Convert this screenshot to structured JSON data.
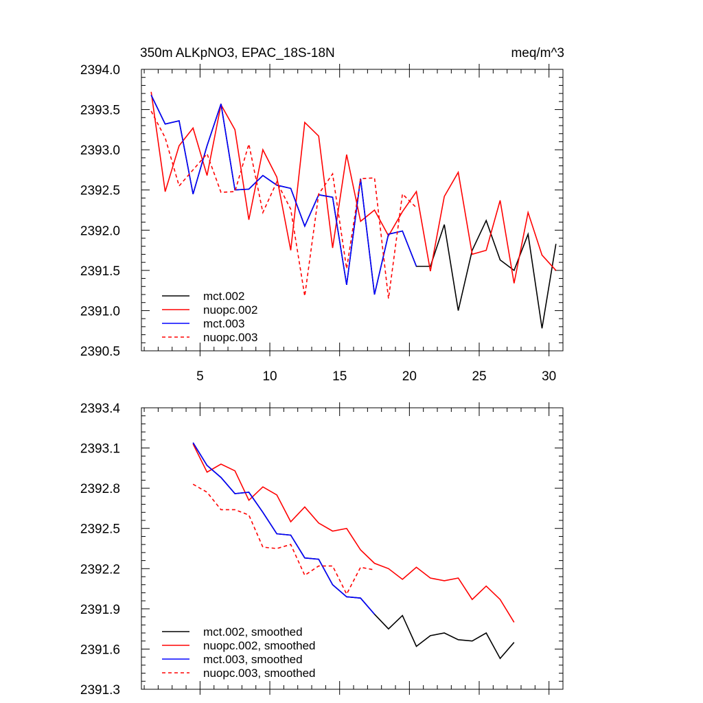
{
  "chart_data": [
    {
      "type": "line",
      "title_left": "350m ALKpNO3, EPAC_18S-18N",
      "title_right": "meq/m^3",
      "xlim": [
        0.8,
        31.0
      ],
      "ylim": [
        2390.5,
        2394.0
      ],
      "xticks": [
        5,
        10,
        15,
        20,
        25,
        30
      ],
      "yticks": [
        2390.5,
        2391.0,
        2391.5,
        2392.0,
        2392.5,
        2393.0,
        2393.5,
        2394.0
      ],
      "ytick_labels": [
        "2390.5",
        "2391.0",
        "2391.5",
        "2392.0",
        "2392.5",
        "2393.0",
        "2393.5",
        "2394.0"
      ],
      "legend_position": "bottom-left",
      "series": [
        {
          "name": "mct.002",
          "color": "#000000",
          "dash": "solid",
          "x": [
            1.5,
            2.5,
            3.5,
            4.5,
            5.5,
            6.5,
            7.5,
            8.5,
            9.5,
            10.5,
            11.5,
            12.5,
            13.5,
            14.5,
            15.5,
            16.5,
            17.5,
            18.5,
            19.5,
            20.5,
            21.5,
            22.5,
            23.5,
            24.5,
            25.5,
            26.5,
            27.5,
            28.5,
            29.5,
            30.5
          ],
          "values": [
            2393.68,
            2393.32,
            2393.36,
            2392.45,
            2393.05,
            2393.57,
            2392.5,
            2392.51,
            2392.68,
            2392.56,
            2392.52,
            2392.05,
            2392.44,
            2392.41,
            2391.32,
            2392.64,
            2391.2,
            2391.95,
            2391.99,
            2391.55,
            2391.55,
            2392.07,
            2391.0,
            2391.75,
            2392.12,
            2391.63,
            2391.5,
            2391.95,
            2390.78,
            2391.83
          ]
        },
        {
          "name": "nuopc.002",
          "color": "#ff0000",
          "dash": "solid",
          "x": [
            1.5,
            2.5,
            3.5,
            4.5,
            5.5,
            6.5,
            7.5,
            8.5,
            9.5,
            10.5,
            11.5,
            12.5,
            13.5,
            14.5,
            15.5,
            16.5,
            17.5,
            18.5,
            19.5,
            20.5,
            21.5,
            22.5,
            23.5,
            24.5,
            25.5,
            26.5,
            27.5,
            28.5,
            29.5,
            30.5
          ],
          "values": [
            2393.72,
            2392.48,
            2393.05,
            2393.27,
            2392.68,
            2393.56,
            2393.25,
            2392.13,
            2393.0,
            2392.66,
            2391.75,
            2393.34,
            2393.17,
            2391.78,
            2392.94,
            2392.11,
            2392.25,
            2391.93,
            2392.23,
            2392.48,
            2391.49,
            2392.42,
            2392.72,
            2391.7,
            2391.75,
            2392.37,
            2391.34,
            2392.22,
            2391.69,
            2391.5
          ]
        },
        {
          "name": "mct.003",
          "color": "#0000ff",
          "dash": "solid",
          "x": [
            1.5,
            2.5,
            3.5,
            4.5,
            5.5,
            6.5,
            7.5,
            8.5,
            9.5,
            10.5,
            11.5,
            12.5,
            13.5,
            14.5,
            15.5,
            16.5,
            17.5,
            18.5,
            19.5,
            20.5
          ],
          "values": [
            2393.68,
            2393.32,
            2393.36,
            2392.45,
            2393.05,
            2393.57,
            2392.5,
            2392.51,
            2392.68,
            2392.56,
            2392.52,
            2392.05,
            2392.44,
            2392.41,
            2391.32,
            2392.64,
            2391.2,
            2391.95,
            2391.99,
            2391.55
          ]
        },
        {
          "name": "nuopc.003",
          "color": "#ff0000",
          "dash": "dashed",
          "x": [
            1.5,
            2.5,
            3.5,
            4.5,
            5.5,
            6.5,
            7.5,
            8.5,
            9.5,
            10.5,
            11.5,
            12.5,
            13.5,
            14.5,
            15.5,
            16.5,
            17.5,
            18.5,
            19.5,
            20.5
          ],
          "values": [
            2393.48,
            2393.15,
            2392.55,
            2392.75,
            2392.95,
            2392.47,
            2392.48,
            2393.07,
            2392.22,
            2392.6,
            2392.26,
            2391.18,
            2392.45,
            2392.7,
            2391.52,
            2392.64,
            2392.65,
            2391.15,
            2392.45,
            2392.28
          ]
        }
      ]
    },
    {
      "type": "line",
      "xlim": [
        0.8,
        31.0
      ],
      "ylim": [
        2391.3,
        2393.4
      ],
      "xticks": [
        5,
        10,
        15,
        20,
        25,
        30
      ],
      "yticks": [
        2391.3,
        2391.6,
        2391.9,
        2392.2,
        2392.5,
        2392.8,
        2393.1,
        2393.4
      ],
      "ytick_labels": [
        "2391.3",
        "2391.6",
        "2391.9",
        "2392.2",
        "2392.5",
        "2392.8",
        "2393.1",
        "2393.4"
      ],
      "legend_position": "bottom-left",
      "series": [
        {
          "name": "mct.002, smoothed",
          "color": "#000000",
          "dash": "solid",
          "x": [
            4.5,
            5.5,
            6.5,
            7.5,
            8.5,
            9.5,
            10.5,
            11.5,
            12.5,
            13.5,
            14.5,
            15.5,
            16.5,
            17.5,
            18.5,
            19.5,
            20.5,
            21.5,
            22.5,
            23.5,
            24.5,
            25.5,
            26.5,
            27.5
          ],
          "values": [
            2393.14,
            2392.97,
            2392.88,
            2392.76,
            2392.77,
            2392.62,
            2392.46,
            2392.45,
            2392.28,
            2392.27,
            2392.08,
            2391.99,
            2391.98,
            2391.86,
            2391.75,
            2391.85,
            2391.62,
            2391.7,
            2391.72,
            2391.67,
            2391.66,
            2391.72,
            2391.53,
            2391.65
          ]
        },
        {
          "name": "nuopc.002, smoothed",
          "color": "#ff0000",
          "dash": "solid",
          "x": [
            4.5,
            5.5,
            6.5,
            7.5,
            8.5,
            9.5,
            10.5,
            11.5,
            12.5,
            13.5,
            14.5,
            15.5,
            16.5,
            17.5,
            18.5,
            19.5,
            20.5,
            21.5,
            22.5,
            23.5,
            24.5,
            25.5,
            26.5,
            27.5
          ],
          "values": [
            2393.13,
            2392.92,
            2392.98,
            2392.93,
            2392.71,
            2392.81,
            2392.75,
            2392.55,
            2392.66,
            2392.54,
            2392.48,
            2392.5,
            2392.34,
            2392.24,
            2392.2,
            2392.12,
            2392.21,
            2392.13,
            2392.11,
            2392.13,
            2391.97,
            2392.07,
            2391.97,
            2391.8
          ]
        },
        {
          "name": "mct.003, smoothed",
          "color": "#0000ff",
          "dash": "solid",
          "x": [
            4.5,
            5.5,
            6.5,
            7.5,
            8.5,
            9.5,
            10.5,
            11.5,
            12.5,
            13.5,
            14.5,
            15.5,
            16.5,
            17.5
          ],
          "values": [
            2393.14,
            2392.97,
            2392.88,
            2392.76,
            2392.77,
            2392.62,
            2392.46,
            2392.45,
            2392.28,
            2392.27,
            2392.08,
            2391.99,
            2391.98,
            2391.86
          ]
        },
        {
          "name": "nuopc.003, smoothed",
          "color": "#ff0000",
          "dash": "dashed",
          "x": [
            4.5,
            5.5,
            6.5,
            7.5,
            8.5,
            9.5,
            10.5,
            11.5,
            12.5,
            13.5,
            14.5,
            15.5,
            16.5,
            17.5
          ],
          "values": [
            2392.83,
            2392.77,
            2392.64,
            2392.64,
            2392.6,
            2392.36,
            2392.35,
            2392.38,
            2392.15,
            2392.22,
            2392.22,
            2392.01,
            2392.21,
            2392.19
          ]
        }
      ]
    }
  ]
}
